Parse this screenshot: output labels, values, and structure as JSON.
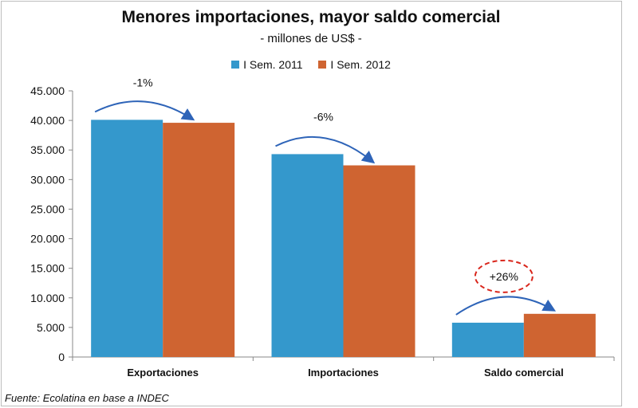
{
  "chart_data": {
    "type": "bar",
    "title": "Menores importaciones, mayor saldo comercial",
    "subtitle": "- millones de US$ -",
    "categories": [
      "Exportaciones",
      "Importaciones",
      "Saldo comercial"
    ],
    "series": [
      {
        "name": "I Sem. 2011",
        "color": "#3498cc",
        "values": [
          40100,
          34300,
          5800
        ]
      },
      {
        "name": "I Sem. 2012",
        "color": "#cf6431",
        "values": [
          39600,
          32400,
          7300
        ]
      }
    ],
    "ylim": [
      0,
      45000
    ],
    "yticks": [
      0,
      5000,
      10000,
      15000,
      20000,
      25000,
      30000,
      35000,
      40000,
      45000
    ],
    "ytick_labels": [
      "0",
      "5.000",
      "10.000",
      "15.000",
      "20.000",
      "25.000",
      "30.000",
      "35.000",
      "40.000",
      "45.000"
    ],
    "annotations": [
      "-1%",
      "-6%",
      "+26%"
    ],
    "highlight": "+26%",
    "grid": false,
    "legend_position": "top"
  },
  "source_note": "Fuente: Ecolatina en base a INDEC"
}
